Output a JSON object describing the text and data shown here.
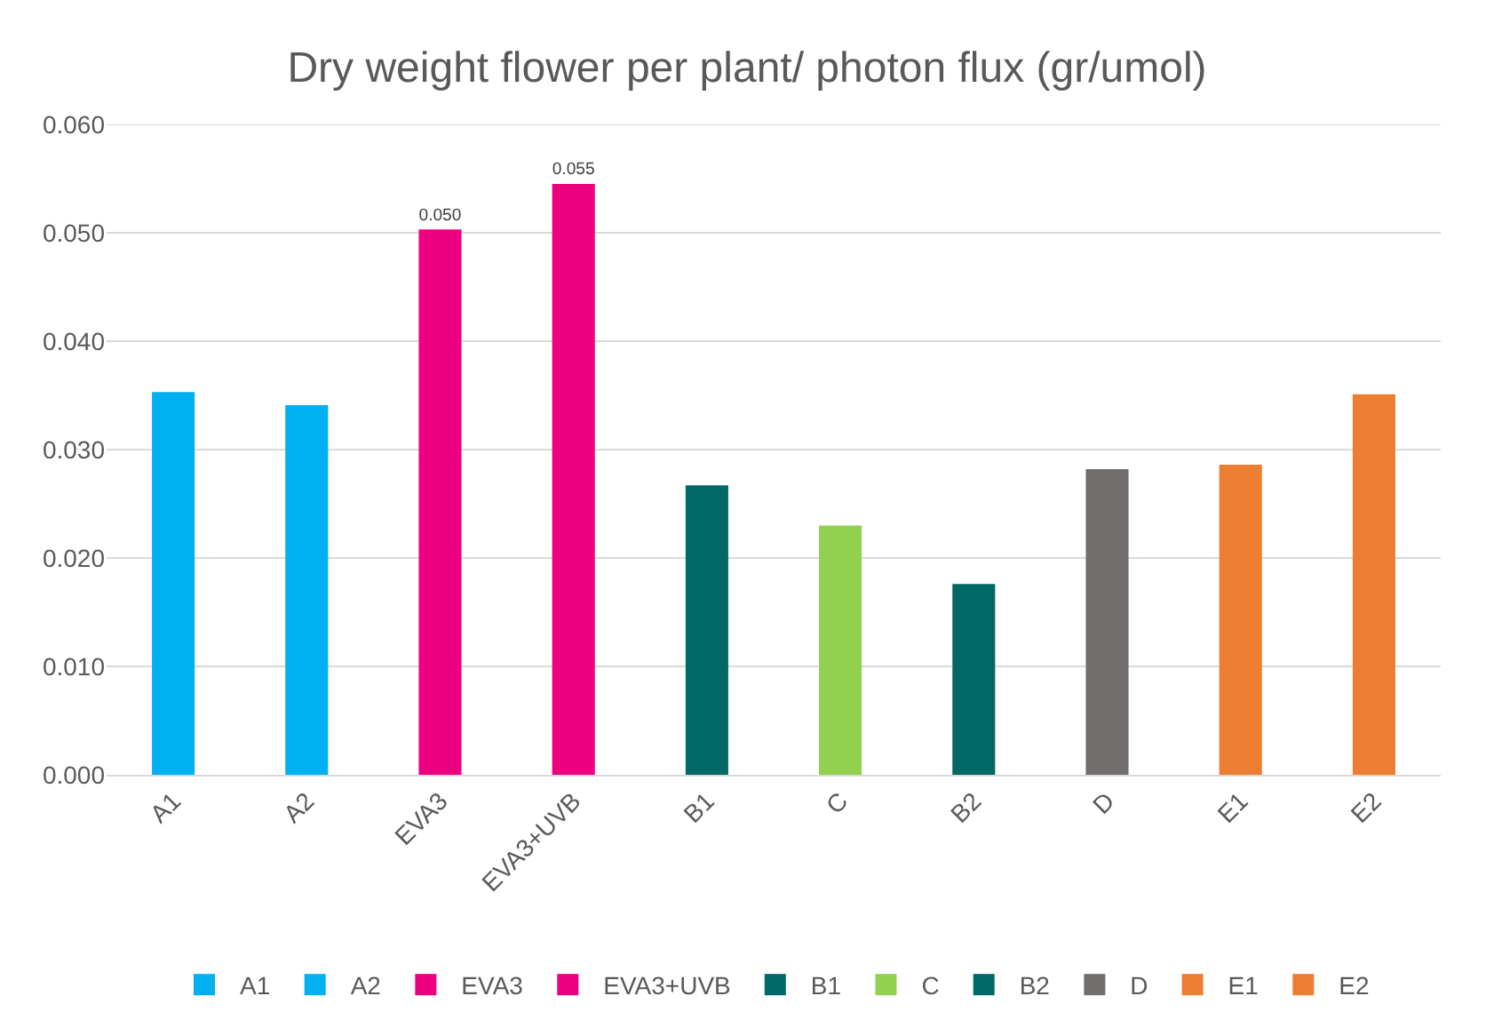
{
  "chart_data": {
    "type": "bar",
    "title": "Dry weight flower per plant/ photon flux (gr/umol)",
    "categories": [
      "A1",
      "A2",
      "EVA3",
      "EVA3+UVB",
      "B1",
      "C",
      "B2",
      "D",
      "E1",
      "E2"
    ],
    "series": [
      {
        "name": "A1",
        "color": "#00b0f0",
        "values": [
          0.0353,
          null,
          null,
          null,
          null,
          null,
          null,
          null,
          null,
          null
        ]
      },
      {
        "name": "A2",
        "color": "#00b0f0",
        "values": [
          null,
          0.0341,
          null,
          null,
          null,
          null,
          null,
          null,
          null,
          null
        ]
      },
      {
        "name": "EVA3",
        "color": "#ec0080",
        "values": [
          null,
          null,
          0.0503,
          null,
          null,
          null,
          null,
          null,
          null,
          null
        ],
        "value_labels": [
          null,
          null,
          "0.050",
          null,
          null,
          null,
          null,
          null,
          null,
          null
        ]
      },
      {
        "name": "EVA3+UVB",
        "color": "#ec0080",
        "values": [
          null,
          null,
          null,
          0.0545,
          null,
          null,
          null,
          null,
          null,
          null
        ],
        "value_labels": [
          null,
          null,
          null,
          "0.055",
          null,
          null,
          null,
          null,
          null,
          null
        ]
      },
      {
        "name": "B1",
        "color": "#006865",
        "values": [
          null,
          null,
          null,
          null,
          0.0267,
          null,
          null,
          null,
          null,
          null
        ]
      },
      {
        "name": "C",
        "color": "#92d050",
        "values": [
          null,
          null,
          null,
          null,
          null,
          0.023,
          null,
          null,
          null,
          null
        ]
      },
      {
        "name": "B2",
        "color": "#006865",
        "values": [
          null,
          null,
          null,
          null,
          null,
          null,
          0.0176,
          null,
          null,
          null
        ]
      },
      {
        "name": "D",
        "color": "#726e6d",
        "values": [
          null,
          null,
          null,
          null,
          null,
          null,
          null,
          0.0282,
          null,
          null
        ]
      },
      {
        "name": "E1",
        "color": "#ed7d31",
        "values": [
          null,
          null,
          null,
          null,
          null,
          null,
          null,
          null,
          0.0286,
          null
        ]
      },
      {
        "name": "E2",
        "color": "#ed7d31",
        "values": [
          null,
          null,
          null,
          null,
          null,
          null,
          null,
          null,
          null,
          0.0351
        ]
      }
    ],
    "ylim": [
      0,
      0.06
    ],
    "yticks": [
      "0.000",
      "0.010",
      "0.020",
      "0.030",
      "0.040",
      "0.050",
      "0.060"
    ],
    "grid": "y",
    "legend": "bottom"
  }
}
